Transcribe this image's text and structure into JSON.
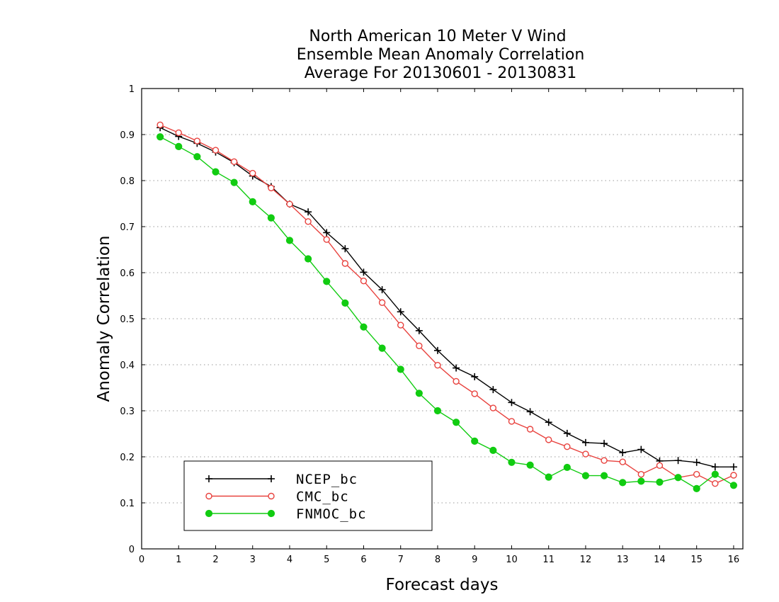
{
  "chart_data": {
    "type": "line",
    "title_lines": [
      "North American 10 Meter V Wind",
      "Ensemble Mean Anomaly Correlation",
      "Average For 20130601 - 20130831"
    ],
    "xlabel": "Forecast days",
    "ylabel": "Anomaly Correlation",
    "xlim": [
      0,
      16.25
    ],
    "ylim": [
      0,
      1
    ],
    "x_ticks": [
      0,
      1,
      2,
      3,
      4,
      5,
      6,
      7,
      8,
      9,
      10,
      11,
      12,
      13,
      14,
      15,
      16
    ],
    "x_tick_labels": [
      "0",
      "1",
      "2",
      "3",
      "4",
      "5",
      "6",
      "7",
      "8",
      "9",
      "10",
      "11",
      "12",
      "13",
      "14",
      "15",
      "16"
    ],
    "y_ticks": [
      0,
      0.1,
      0.2,
      0.3,
      0.4,
      0.5,
      0.6,
      0.7,
      0.8,
      0.9,
      1
    ],
    "y_tick_labels": [
      "0",
      "0.1",
      "0.2",
      "0.3",
      "0.4",
      "0.5",
      "0.6",
      "0.7",
      "0.8",
      "0.9",
      "1"
    ],
    "grid": "horizontal dotted",
    "legend_position": "bottom-left",
    "x": [
      0.5,
      1.0,
      1.5,
      2.0,
      2.5,
      3.0,
      3.5,
      4.0,
      4.5,
      5.0,
      5.5,
      6.0,
      6.5,
      7.0,
      7.5,
      8.0,
      8.5,
      9.0,
      9.5,
      10.0,
      10.5,
      11.0,
      11.5,
      12.0,
      12.5,
      13.0,
      13.5,
      14.0,
      14.5,
      15.0,
      15.5,
      16.0
    ],
    "series": [
      {
        "name": "NCEP_bc",
        "color": "#000000",
        "marker": "plus",
        "values": [
          0.915,
          0.896,
          0.881,
          0.862,
          0.839,
          0.81,
          0.787,
          0.749,
          0.732,
          0.687,
          0.652,
          0.601,
          0.563,
          0.515,
          0.474,
          0.431,
          0.393,
          0.374,
          0.346,
          0.318,
          0.298,
          0.275,
          0.251,
          0.231,
          0.229,
          0.209,
          0.216,
          0.191,
          0.192,
          0.188,
          0.178,
          0.178
        ]
      },
      {
        "name": "CMC_bc",
        "color": "#e8423e",
        "marker": "open-circle",
        "values": [
          0.921,
          0.904,
          0.886,
          0.866,
          0.841,
          0.816,
          0.784,
          0.749,
          0.711,
          0.672,
          0.62,
          0.582,
          0.535,
          0.486,
          0.441,
          0.399,
          0.364,
          0.337,
          0.306,
          0.277,
          0.26,
          0.237,
          0.222,
          0.206,
          0.192,
          0.189,
          0.162,
          0.181,
          0.155,
          0.162,
          0.142,
          0.16
        ]
      },
      {
        "name": "FNMOC_bc",
        "color": "#11cc11",
        "marker": "filled-circle",
        "values": [
          0.895,
          0.874,
          0.852,
          0.819,
          0.796,
          0.754,
          0.719,
          0.67,
          0.63,
          0.581,
          0.534,
          0.482,
          0.436,
          0.39,
          0.338,
          0.3,
          0.275,
          0.234,
          0.214,
          0.188,
          0.182,
          0.156,
          0.177,
          0.159,
          0.159,
          0.144,
          0.147,
          0.145,
          0.155,
          0.131,
          0.162,
          0.138
        ]
      }
    ]
  }
}
